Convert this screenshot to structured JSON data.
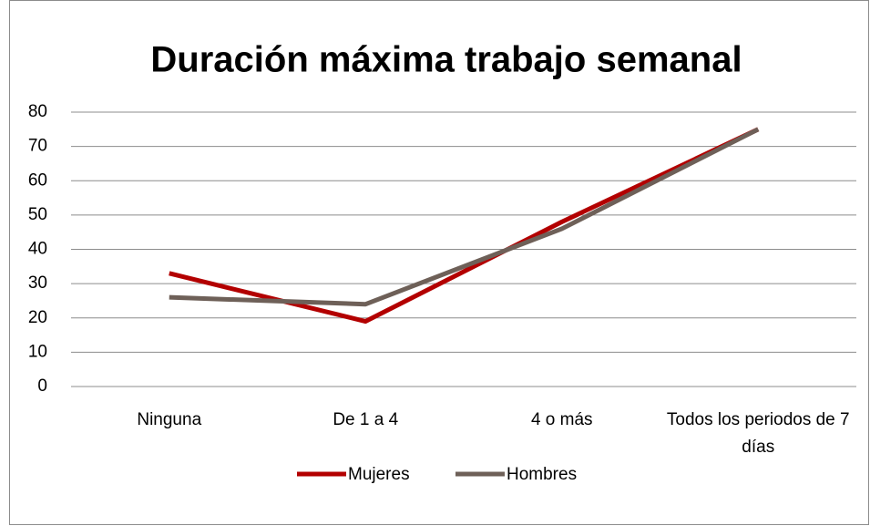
{
  "chart_data": {
    "type": "line",
    "title": "Duración máxima trabajo semanal",
    "categories": [
      "Ninguna",
      "De 1 a 4",
      "4 o más",
      "Todos los periodos de 7 días"
    ],
    "series": [
      {
        "name": "Mujeres",
        "color": "#b30000",
        "values": [
          33,
          19,
          48,
          75
        ]
      },
      {
        "name": "Hombres",
        "color": "#6e6058",
        "values": [
          26,
          24,
          46,
          75
        ]
      }
    ],
    "ylim": [
      0,
      80
    ],
    "yticks": [
      0,
      10,
      20,
      30,
      40,
      50,
      60,
      70,
      80
    ],
    "grid": true,
    "legend": "bottom"
  }
}
